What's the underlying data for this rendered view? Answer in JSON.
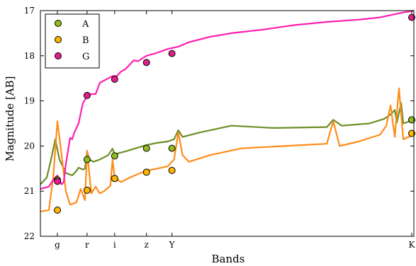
{
  "chart_data": {
    "type": "line",
    "xlabel": "Bands",
    "ylabel": "Magnitude [AB]",
    "x_categories": [
      "g",
      "r",
      "i",
      "z",
      "Y",
      "K"
    ],
    "x_category_positions": [
      0.48,
      0.62,
      0.75,
      0.9,
      1.02,
      2.15
    ],
    "xlim": [
      0.4,
      2.16
    ],
    "ylim": [
      22,
      17
    ],
    "y_ticks": [
      17,
      18,
      19,
      20,
      21,
      22
    ],
    "grid": false,
    "legend": "top-left",
    "series": [
      {
        "name": "A",
        "color": "#6b8e23",
        "marker_color": "#8fbc1f",
        "points": [
          20.75,
          20.3,
          20.22,
          20.05,
          20.05,
          19.42
        ],
        "curve": [
          [
            0.4,
            20.85
          ],
          [
            0.43,
            20.7
          ],
          [
            0.45,
            20.3
          ],
          [
            0.47,
            19.85
          ],
          [
            0.49,
            20.3
          ],
          [
            0.52,
            20.6
          ],
          [
            0.55,
            20.65
          ],
          [
            0.57,
            20.55
          ],
          [
            0.58,
            20.48
          ],
          [
            0.6,
            20.52
          ],
          [
            0.61,
            20.5
          ],
          [
            0.62,
            20.12
          ],
          [
            0.63,
            20.3
          ],
          [
            0.65,
            20.35
          ],
          [
            0.68,
            20.3
          ],
          [
            0.72,
            20.2
          ],
          [
            0.74,
            20.06
          ],
          [
            0.75,
            20.18
          ],
          [
            0.8,
            20.12
          ],
          [
            0.85,
            20.05
          ],
          [
            0.9,
            19.98
          ],
          [
            0.95,
            19.93
          ],
          [
            1.0,
            19.9
          ],
          [
            1.03,
            19.85
          ],
          [
            1.05,
            19.65
          ],
          [
            1.07,
            19.8
          ],
          [
            1.15,
            19.7
          ],
          [
            1.3,
            19.55
          ],
          [
            1.5,
            19.6
          ],
          [
            1.75,
            19.58
          ],
          [
            1.78,
            19.42
          ],
          [
            1.82,
            19.55
          ],
          [
            1.95,
            19.5
          ],
          [
            2.02,
            19.4
          ],
          [
            2.05,
            19.3
          ],
          [
            2.07,
            19.2
          ],
          [
            2.08,
            19.48
          ],
          [
            2.1,
            19.05
          ],
          [
            2.11,
            19.5
          ],
          [
            2.16,
            19.42
          ]
        ]
      },
      {
        "name": "B",
        "color": "#ff8c1a",
        "marker_color": "#ffb400",
        "points": [
          21.42,
          20.98,
          20.72,
          20.58,
          20.54,
          19.72
        ],
        "curve": [
          [
            0.4,
            21.45
          ],
          [
            0.44,
            21.42
          ],
          [
            0.46,
            20.7
          ],
          [
            0.48,
            19.45
          ],
          [
            0.5,
            20.2
          ],
          [
            0.52,
            21.0
          ],
          [
            0.54,
            21.3
          ],
          [
            0.57,
            21.25
          ],
          [
            0.59,
            20.95
          ],
          [
            0.61,
            21.2
          ],
          [
            0.62,
            20.1
          ],
          [
            0.63,
            20.6
          ],
          [
            0.64,
            21.05
          ],
          [
            0.66,
            20.9
          ],
          [
            0.68,
            21.05
          ],
          [
            0.7,
            21.0
          ],
          [
            0.73,
            20.88
          ],
          [
            0.74,
            20.3
          ],
          [
            0.75,
            20.7
          ],
          [
            0.78,
            20.8
          ],
          [
            0.82,
            20.7
          ],
          [
            0.86,
            20.62
          ],
          [
            0.9,
            20.55
          ],
          [
            0.95,
            20.5
          ],
          [
            1.0,
            20.45
          ],
          [
            1.03,
            20.3
          ],
          [
            1.05,
            19.7
          ],
          [
            1.07,
            20.2
          ],
          [
            1.1,
            20.35
          ],
          [
            1.2,
            20.2
          ],
          [
            1.35,
            20.05
          ],
          [
            1.55,
            20.0
          ],
          [
            1.75,
            19.95
          ],
          [
            1.78,
            19.45
          ],
          [
            1.81,
            20.0
          ],
          [
            1.9,
            19.9
          ],
          [
            2.0,
            19.75
          ],
          [
            2.03,
            19.55
          ],
          [
            2.05,
            19.1
          ],
          [
            2.07,
            19.8
          ],
          [
            2.09,
            18.72
          ],
          [
            2.11,
            19.85
          ],
          [
            2.16,
            19.75
          ]
        ]
      },
      {
        "name": "G",
        "color": "#ff1fb0",
        "marker_color": "#e0208a",
        "points": [
          20.78,
          18.88,
          18.52,
          18.15,
          17.95,
          17.15
        ],
        "curve": [
          [
            0.4,
            20.95
          ],
          [
            0.44,
            20.9
          ],
          [
            0.46,
            20.75
          ],
          [
            0.48,
            20.65
          ],
          [
            0.5,
            20.85
          ],
          [
            0.51,
            20.8
          ],
          [
            0.52,
            20.4
          ],
          [
            0.54,
            19.82
          ],
          [
            0.55,
            19.85
          ],
          [
            0.56,
            19.7
          ],
          [
            0.58,
            19.5
          ],
          [
            0.6,
            19.05
          ],
          [
            0.62,
            18.9
          ],
          [
            0.64,
            18.85
          ],
          [
            0.66,
            18.85
          ],
          [
            0.68,
            18.6
          ],
          [
            0.7,
            18.55
          ],
          [
            0.72,
            18.5
          ],
          [
            0.74,
            18.45
          ],
          [
            0.76,
            18.45
          ],
          [
            0.78,
            18.35
          ],
          [
            0.8,
            18.3
          ],
          [
            0.82,
            18.2
          ],
          [
            0.84,
            18.1
          ],
          [
            0.86,
            18.12
          ],
          [
            0.9,
            18.0
          ],
          [
            0.94,
            17.95
          ],
          [
            1.0,
            17.85
          ],
          [
            1.05,
            17.8
          ],
          [
            1.1,
            17.7
          ],
          [
            1.2,
            17.58
          ],
          [
            1.3,
            17.5
          ],
          [
            1.45,
            17.42
          ],
          [
            1.6,
            17.32
          ],
          [
            1.75,
            17.25
          ],
          [
            1.9,
            17.2
          ],
          [
            2.0,
            17.15
          ],
          [
            2.1,
            17.05
          ],
          [
            2.16,
            17.0
          ]
        ]
      }
    ]
  }
}
